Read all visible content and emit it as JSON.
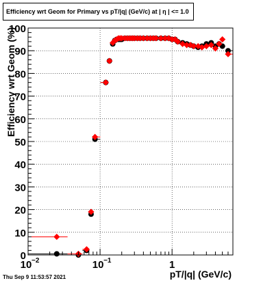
{
  "title": "Efficiency wrt Geom for Primary vs pT/|q| (GeV/c) at |  η | <= 1.0",
  "footer_timestamp": "Thu Sep  9 11:53:57 2021",
  "chart_data": {
    "type": "scatter",
    "title": "Efficiency wrt Geom for Primary vs pT/|q| (GeV/c) at |  η | <= 1.0",
    "xlabel": "pT/|q| (GeV/c)",
    "ylabel": "Efficiency wrt Geom (%)",
    "xscale": "log",
    "xlim": [
      0.01,
      7.0
    ],
    "ylim": [
      0,
      100
    ],
    "grid": true,
    "x_tick_labels": [
      {
        "value": 0.01,
        "label": "10",
        "exp": "−2"
      },
      {
        "value": 0.1,
        "label": "10",
        "exp": "−1"
      },
      {
        "value": 1,
        "label": "1",
        "exp": ""
      }
    ],
    "y_ticks": [
      0,
      10,
      20,
      30,
      40,
      50,
      60,
      70,
      80,
      90,
      100
    ],
    "colors": {
      "series1": "#000000",
      "series2": "#ff0000"
    },
    "series": [
      {
        "color": "#000000",
        "marker": "circle",
        "x": [
          0.025,
          0.05,
          0.065,
          0.075,
          0.085,
          0.12,
          0.135,
          0.15,
          0.16,
          0.17,
          0.18,
          0.19,
          0.2,
          0.22,
          0.24,
          0.26,
          0.28,
          0.3,
          0.33,
          0.36,
          0.4,
          0.45,
          0.5,
          0.55,
          0.6,
          0.7,
          0.8,
          0.9,
          1.0,
          1.1,
          1.2,
          1.4,
          1.6,
          1.8,
          2.0,
          2.3,
          2.6,
          3.0,
          3.5,
          4.0,
          4.5,
          5.0,
          6.0
        ],
        "y": [
          0.5,
          0,
          2,
          18,
          51,
          76,
          85.5,
          93,
          94.5,
          95,
          95,
          95,
          95,
          95.5,
          95.5,
          95.5,
          95.5,
          95.5,
          95.5,
          95.5,
          95.5,
          95.5,
          95.5,
          95.5,
          95.5,
          95.5,
          95.5,
          95.5,
          95,
          95,
          94,
          93.5,
          93,
          92.5,
          92,
          91.5,
          92,
          93,
          93.5,
          92,
          93,
          92,
          90
        ]
      },
      {
        "color": "#ff0000",
        "marker": "diamond",
        "x": [
          0.025,
          0.05,
          0.065,
          0.075,
          0.085,
          0.12,
          0.135,
          0.15,
          0.16,
          0.17,
          0.18,
          0.19,
          0.2,
          0.22,
          0.24,
          0.26,
          0.28,
          0.3,
          0.33,
          0.36,
          0.4,
          0.45,
          0.5,
          0.55,
          0.6,
          0.7,
          0.8,
          0.9,
          1.0,
          1.1,
          1.2,
          1.4,
          1.6,
          1.8,
          2.0,
          2.3,
          2.6,
          3.0,
          3.5,
          4.0,
          4.5,
          5.0,
          6.0
        ],
        "y": [
          8,
          0.5,
          2.5,
          19,
          52,
          76,
          85.5,
          93.5,
          94.5,
          95,
          95.5,
          95.5,
          95.5,
          95.5,
          95.5,
          95.5,
          95.5,
          95.5,
          95.5,
          95.5,
          95.5,
          95.5,
          95.5,
          95.5,
          95.5,
          95.5,
          95.5,
          95.5,
          95,
          95,
          94,
          93,
          92.5,
          92.5,
          92,
          92,
          91.5,
          92,
          92.5,
          91,
          93,
          95,
          88.5
        ]
      }
    ]
  }
}
